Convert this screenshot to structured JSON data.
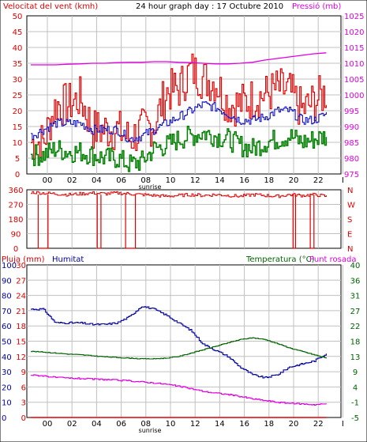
{
  "colors": {
    "background": "#ffffff",
    "frame": "#000000",
    "grid": "#c0c0c0",
    "wind": "#e00000",
    "gust": "#e00000",
    "avg_speed": "#0000c0",
    "direction": "#e00000",
    "pressure": "#e000e0",
    "rain": "#e00000",
    "humidity": "#0000a0",
    "temperature": "#006400",
    "dewpoint": "#e000e0"
  },
  "chart_data": [
    {
      "type": "line",
      "title": "24 hour graph day : 17 Octubre 2010",
      "ylabel": "Velocitat del vent (kmh)",
      "y2label": "Pressió (mb)",
      "sunrise_label": "sunrise",
      "x_ticks": [
        "00",
        "02",
        "04",
        "06",
        "08",
        "10",
        "12",
        "14",
        "16",
        "18",
        "20",
        "22",
        "I"
      ],
      "y_ticks": [
        "0",
        "5",
        "10",
        "15",
        "20",
        "25",
        "30",
        "35",
        "40",
        "45",
        "50"
      ],
      "y2_ticks": [
        "975",
        "980",
        "985",
        "990",
        "995",
        "1000",
        "1005",
        "1010",
        "1015",
        "1020",
        "1025"
      ],
      "ylim": [
        0,
        50
      ],
      "y2lim": [
        975,
        1025
      ],
      "x_hours": [
        -1,
        0,
        1,
        2,
        3,
        4,
        5,
        6,
        7,
        8,
        9,
        10,
        11,
        12,
        13,
        14,
        15,
        16,
        17,
        18,
        19,
        20,
        21,
        22,
        23
      ],
      "series": [
        {
          "values": [
            10,
            10,
            22,
            22,
            24,
            14,
            14,
            14,
            11,
            14,
            16,
            26,
            27,
            33,
            30,
            29,
            22,
            22,
            24,
            25,
            27,
            26,
            20,
            23,
            26
          ]
        },
        {
          "values": [
            6,
            6,
            8,
            7,
            7,
            6,
            5,
            5,
            3,
            4,
            8,
            9,
            11,
            12,
            13,
            12,
            11,
            9,
            8,
            10,
            11,
            12,
            10,
            11,
            12
          ]
        },
        {
          "values": [
            12,
            14,
            16,
            16,
            16,
            14,
            14,
            14,
            11,
            12,
            14,
            16,
            18,
            20,
            22,
            21,
            19,
            17,
            17,
            18,
            20,
            20,
            17,
            17,
            19
          ]
        },
        {
          "values": [
            1009.5,
            1009.5,
            1009.5,
            1009.7,
            1009.8,
            1010,
            1010,
            1010.2,
            1010.3,
            1010.3,
            1010.5,
            1010.5,
            1010.3,
            1010.2,
            1010,
            1009.8,
            1009.8,
            1010,
            1010.3,
            1011,
            1011.5,
            1012,
            1012.5,
            1013,
            1013.3
          ]
        }
      ]
    },
    {
      "type": "scatter",
      "y_ticks": [
        "360",
        "270",
        "180",
        "90",
        "0"
      ],
      "y2_ticks": [
        "N",
        "W",
        "S",
        "E",
        "N"
      ],
      "ylim": [
        0,
        360
      ],
      "x_hours": [
        -1,
        0,
        1,
        2,
        3,
        4,
        5,
        6,
        7,
        8,
        9,
        10,
        11,
        12,
        13,
        14,
        15,
        16,
        17,
        18,
        19,
        20,
        21,
        22,
        23
      ],
      "series": [
        {
          "values": [
            345,
            340,
            335,
            330,
            335,
            340,
            335,
            340,
            335,
            330,
            325,
            320,
            325,
            330,
            325,
            330,
            325,
            320,
            330,
            325,
            320,
            330,
            325,
            330,
            320
          ]
        }
      ]
    },
    {
      "type": "line",
      "ylabel": "Pluja (mm)",
      "y_series_label": "Humitat",
      "y2label": "Temperatura (°C)",
      "y2_series_label": "Punt rosada",
      "sunrise_label": "sunrise",
      "x_ticks": [
        "00",
        "02",
        "04",
        "06",
        "08",
        "10",
        "12",
        "14",
        "16",
        "18",
        "20",
        "22",
        "I"
      ],
      "rain_ticks": [
        "0",
        "3",
        "6",
        "9",
        "12",
        "15",
        "18",
        "21",
        "24",
        "27",
        "30"
      ],
      "humidity_ticks": [
        "0",
        "10",
        "20",
        "30",
        "40",
        "50",
        "60",
        "70",
        "80",
        "90",
        "100"
      ],
      "temp_ticks": [
        "-5",
        "-1",
        "4",
        "9",
        "13",
        "18",
        "22",
        "27",
        "31",
        "36",
        "40"
      ],
      "ylim": [
        0,
        100
      ],
      "y2lim": [
        -5,
        40
      ],
      "x_hours": [
        -1,
        0,
        1,
        2,
        3,
        4,
        5,
        6,
        7,
        8,
        9,
        10,
        11,
        12,
        13,
        14,
        15,
        16,
        17,
        18,
        19,
        20,
        21,
        22,
        23
      ],
      "series": [
        {
          "values": [
            71,
            71,
            62,
            62,
            62,
            61,
            61,
            62,
            66,
            73,
            71,
            67,
            62,
            57,
            48,
            44,
            40,
            33,
            28,
            26,
            28,
            33,
            35,
            37,
            42
          ]
        },
        {
          "values": [
            14.5,
            14.3,
            14,
            13.7,
            13.5,
            13.2,
            12.9,
            12.7,
            12.5,
            12.3,
            12.3,
            12.5,
            13,
            14,
            15,
            16,
            17,
            18,
            18.5,
            18,
            16.8,
            15.5,
            14.5,
            13.5,
            12.5
          ]
        },
        {
          "values": [
            7.5,
            7.3,
            6.8,
            6.6,
            6.5,
            6.3,
            6.2,
            6,
            5.8,
            5.5,
            5.2,
            4.8,
            4.2,
            3.5,
            2.7,
            2.2,
            1.8,
            1.2,
            0.5,
            0,
            -0.5,
            -0.8,
            -1,
            -1.2,
            -1
          ]
        },
        {
          "values": [
            0,
            0,
            0,
            0,
            0,
            0,
            0,
            0,
            0,
            0,
            0,
            0,
            0,
            0,
            0,
            0,
            0,
            0,
            0,
            0,
            0,
            0,
            0,
            0,
            0
          ]
        }
      ]
    }
  ]
}
